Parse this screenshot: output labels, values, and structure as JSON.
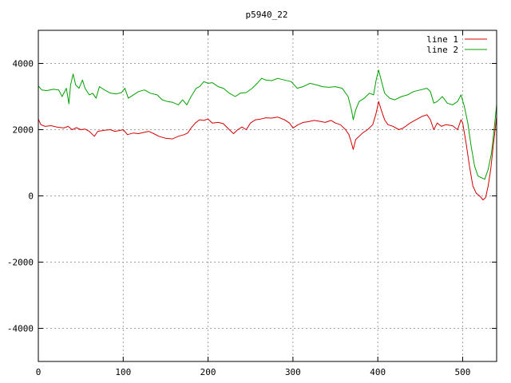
{
  "chart_data": {
    "type": "line",
    "title": "p5940_22",
    "xlabel": "",
    "ylabel": "",
    "xlim": [
      0,
      540
    ],
    "ylim": [
      -5000,
      5000
    ],
    "x_ticks": [
      0,
      100,
      200,
      300,
      400,
      500
    ],
    "y_ticks": [
      -4000,
      -2000,
      0,
      2000,
      4000
    ],
    "grid": true,
    "legend_position": "top-right",
    "series": [
      {
        "name": "line 1",
        "color": "#d40000",
        "points": [
          [
            0,
            2320
          ],
          [
            3,
            2150
          ],
          [
            8,
            2100
          ],
          [
            15,
            2120
          ],
          [
            22,
            2080
          ],
          [
            30,
            2050
          ],
          [
            35,
            2100
          ],
          [
            40,
            2000
          ],
          [
            45,
            2060
          ],
          [
            50,
            2000
          ],
          [
            55,
            2020
          ],
          [
            60,
            1950
          ],
          [
            66,
            1800
          ],
          [
            70,
            1950
          ],
          [
            78,
            1980
          ],
          [
            85,
            2000
          ],
          [
            90,
            1950
          ],
          [
            95,
            1970
          ],
          [
            100,
            2000
          ],
          [
            105,
            1850
          ],
          [
            112,
            1900
          ],
          [
            118,
            1880
          ],
          [
            125,
            1920
          ],
          [
            130,
            1950
          ],
          [
            136,
            1880
          ],
          [
            142,
            1800
          ],
          [
            150,
            1740
          ],
          [
            158,
            1720
          ],
          [
            165,
            1800
          ],
          [
            172,
            1850
          ],
          [
            176,
            1900
          ],
          [
            180,
            2050
          ],
          [
            185,
            2200
          ],
          [
            190,
            2300
          ],
          [
            195,
            2280
          ],
          [
            200,
            2320
          ],
          [
            205,
            2200
          ],
          [
            212,
            2220
          ],
          [
            218,
            2180
          ],
          [
            225,
            2000
          ],
          [
            230,
            1880
          ],
          [
            235,
            2000
          ],
          [
            240,
            2080
          ],
          [
            245,
            2000
          ],
          [
            250,
            2200
          ],
          [
            256,
            2300
          ],
          [
            262,
            2320
          ],
          [
            268,
            2360
          ],
          [
            275,
            2350
          ],
          [
            282,
            2380
          ],
          [
            290,
            2300
          ],
          [
            296,
            2200
          ],
          [
            300,
            2050
          ],
          [
            306,
            2150
          ],
          [
            312,
            2220
          ],
          [
            318,
            2240
          ],
          [
            325,
            2280
          ],
          [
            332,
            2250
          ],
          [
            338,
            2220
          ],
          [
            345,
            2280
          ],
          [
            350,
            2200
          ],
          [
            356,
            2150
          ],
          [
            362,
            2000
          ],
          [
            366,
            1850
          ],
          [
            369,
            1600
          ],
          [
            371,
            1400
          ],
          [
            374,
            1700
          ],
          [
            378,
            1800
          ],
          [
            382,
            1900
          ],
          [
            388,
            2000
          ],
          [
            394,
            2150
          ],
          [
            398,
            2500
          ],
          [
            401,
            2850
          ],
          [
            404,
            2600
          ],
          [
            408,
            2300
          ],
          [
            412,
            2150
          ],
          [
            418,
            2100
          ],
          [
            425,
            2000
          ],
          [
            430,
            2050
          ],
          [
            438,
            2200
          ],
          [
            445,
            2300
          ],
          [
            452,
            2400
          ],
          [
            458,
            2450
          ],
          [
            462,
            2300
          ],
          [
            466,
            2000
          ],
          [
            470,
            2200
          ],
          [
            475,
            2100
          ],
          [
            480,
            2150
          ],
          [
            488,
            2120
          ],
          [
            494,
            2000
          ],
          [
            498,
            2300
          ],
          [
            500,
            2200
          ],
          [
            504,
            1600
          ],
          [
            508,
            900
          ],
          [
            512,
            300
          ],
          [
            516,
            80
          ],
          [
            520,
            0
          ],
          [
            524,
            -120
          ],
          [
            527,
            -50
          ],
          [
            530,
            300
          ],
          [
            533,
            800
          ],
          [
            536,
            1500
          ],
          [
            540,
            2400
          ]
        ]
      },
      {
        "name": "line 2",
        "color": "#00a000",
        "points": [
          [
            0,
            3320
          ],
          [
            4,
            3200
          ],
          [
            10,
            3180
          ],
          [
            18,
            3220
          ],
          [
            24,
            3200
          ],
          [
            28,
            3000
          ],
          [
            33,
            3250
          ],
          [
            36,
            2780
          ],
          [
            38,
            3350
          ],
          [
            41,
            3680
          ],
          [
            44,
            3350
          ],
          [
            48,
            3250
          ],
          [
            52,
            3500
          ],
          [
            55,
            3250
          ],
          [
            60,
            3050
          ],
          [
            64,
            3100
          ],
          [
            68,
            2950
          ],
          [
            72,
            3300
          ],
          [
            78,
            3200
          ],
          [
            85,
            3100
          ],
          [
            92,
            3080
          ],
          [
            98,
            3120
          ],
          [
            102,
            3250
          ],
          [
            106,
            2950
          ],
          [
            112,
            3050
          ],
          [
            118,
            3150
          ],
          [
            125,
            3200
          ],
          [
            132,
            3100
          ],
          [
            140,
            3050
          ],
          [
            146,
            2900
          ],
          [
            152,
            2850
          ],
          [
            158,
            2830
          ],
          [
            165,
            2750
          ],
          [
            170,
            2900
          ],
          [
            175,
            2750
          ],
          [
            180,
            3000
          ],
          [
            186,
            3250
          ],
          [
            190,
            3300
          ],
          [
            195,
            3450
          ],
          [
            200,
            3400
          ],
          [
            205,
            3420
          ],
          [
            212,
            3300
          ],
          [
            218,
            3250
          ],
          [
            225,
            3100
          ],
          [
            232,
            3000
          ],
          [
            238,
            3100
          ],
          [
            245,
            3120
          ],
          [
            252,
            3250
          ],
          [
            258,
            3400
          ],
          [
            263,
            3550
          ],
          [
            268,
            3500
          ],
          [
            275,
            3480
          ],
          [
            282,
            3550
          ],
          [
            290,
            3500
          ],
          [
            298,
            3450
          ],
          [
            305,
            3250
          ],
          [
            312,
            3300
          ],
          [
            320,
            3400
          ],
          [
            328,
            3350
          ],
          [
            335,
            3300
          ],
          [
            342,
            3280
          ],
          [
            350,
            3300
          ],
          [
            358,
            3250
          ],
          [
            365,
            3000
          ],
          [
            369,
            2600
          ],
          [
            371,
            2300
          ],
          [
            374,
            2600
          ],
          [
            378,
            2850
          ],
          [
            384,
            2950
          ],
          [
            390,
            3100
          ],
          [
            395,
            3050
          ],
          [
            398,
            3500
          ],
          [
            401,
            3800
          ],
          [
            404,
            3500
          ],
          [
            408,
            3100
          ],
          [
            414,
            2950
          ],
          [
            420,
            2900
          ],
          [
            428,
            3000
          ],
          [
            435,
            3050
          ],
          [
            442,
            3150
          ],
          [
            450,
            3200
          ],
          [
            458,
            3250
          ],
          [
            462,
            3150
          ],
          [
            466,
            2800
          ],
          [
            470,
            2850
          ],
          [
            476,
            3000
          ],
          [
            482,
            2800
          ],
          [
            488,
            2750
          ],
          [
            494,
            2850
          ],
          [
            498,
            3050
          ],
          [
            502,
            2700
          ],
          [
            506,
            2200
          ],
          [
            510,
            1500
          ],
          [
            514,
            900
          ],
          [
            518,
            600
          ],
          [
            522,
            550
          ],
          [
            526,
            500
          ],
          [
            530,
            800
          ],
          [
            534,
            1300
          ],
          [
            537,
            2000
          ],
          [
            540,
            2750
          ]
        ]
      }
    ]
  }
}
